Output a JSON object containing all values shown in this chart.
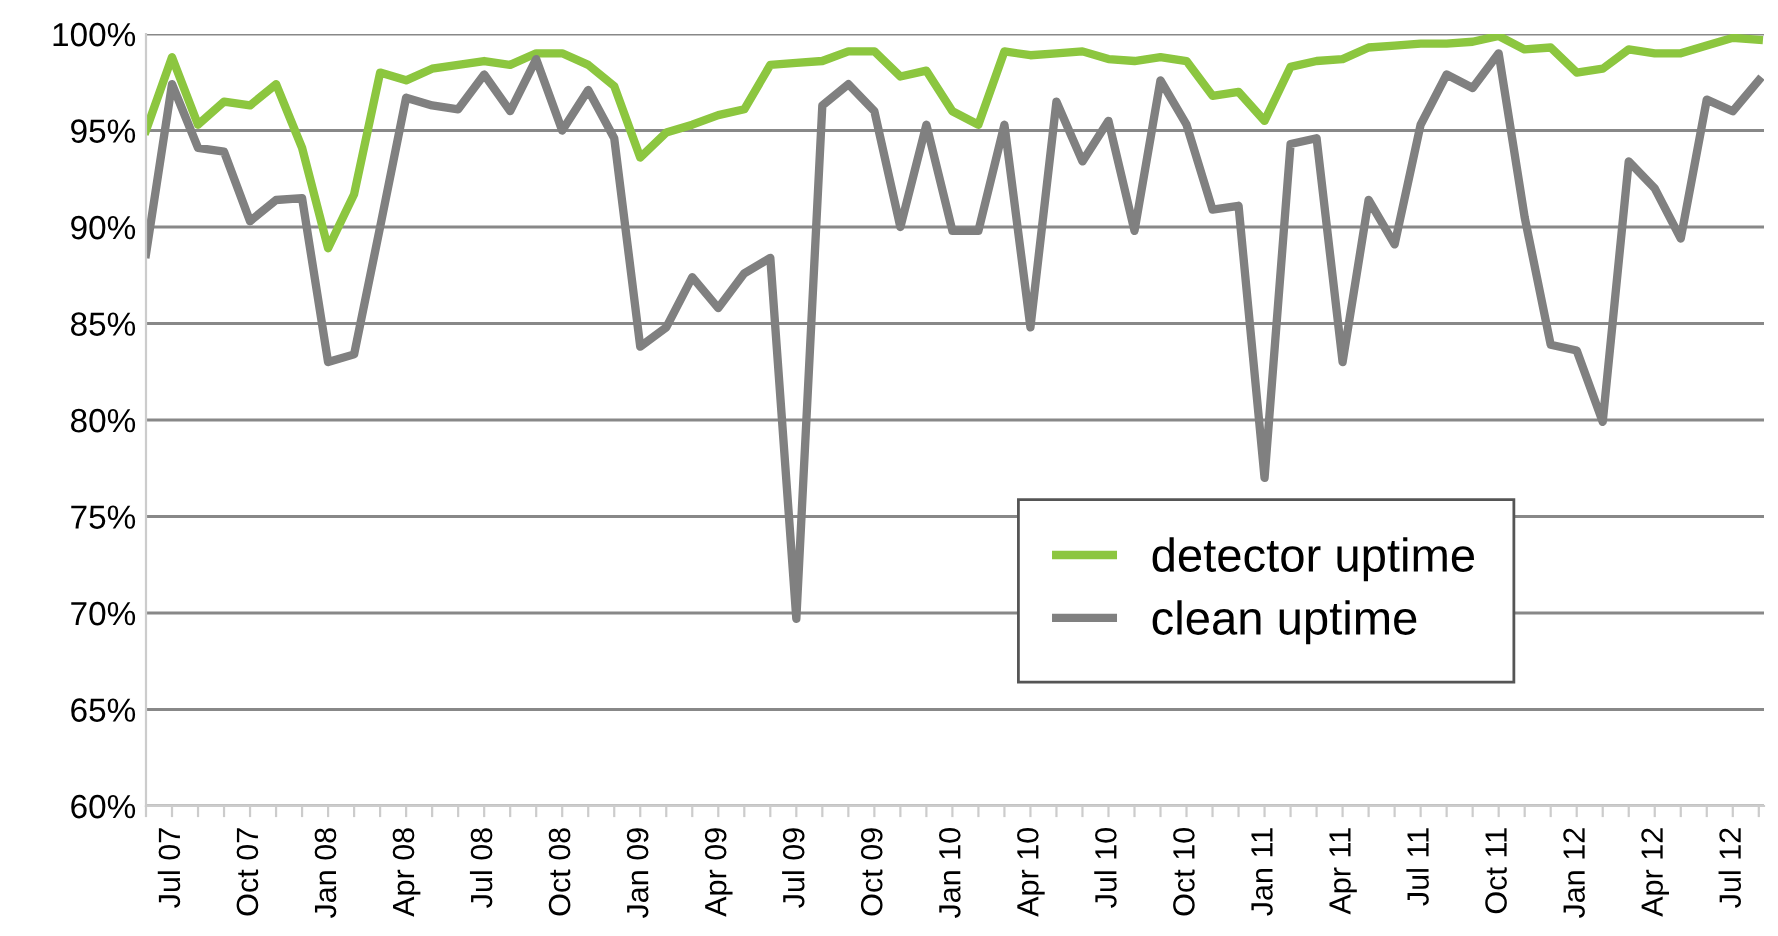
{
  "chart_data": {
    "type": "line",
    "categories": [
      null,
      "Jul 07",
      null,
      null,
      "Oct 07",
      null,
      null,
      "Jan 08",
      null,
      null,
      "Apr 08",
      null,
      null,
      "Jul 08",
      null,
      null,
      "Oct 08",
      null,
      null,
      "Jan 09",
      null,
      null,
      "Apr 09",
      null,
      null,
      "Jul 09",
      null,
      null,
      "Oct 09",
      null,
      null,
      "Jan 10",
      null,
      null,
      "Apr 10",
      null,
      null,
      "Jul 10",
      null,
      null,
      "Oct 10",
      null,
      null,
      "Jan 11",
      null,
      null,
      "Apr 11",
      null,
      null,
      "Jul 11",
      null,
      null,
      "Oct 11",
      null,
      null,
      "Jan 12",
      null,
      null,
      "Apr 12",
      null,
      null,
      "Jul 12",
      null
    ],
    "series": [
      {
        "name": "detector uptime",
        "color": "#8cc63f",
        "values": [
          95.0,
          98.8,
          95.3,
          96.5,
          96.3,
          97.4,
          94.1,
          88.9,
          91.7,
          98.0,
          97.6,
          98.2,
          98.4,
          98.6,
          98.4,
          99.0,
          99.0,
          98.4,
          97.3,
          93.6,
          94.9,
          95.3,
          95.8,
          96.1,
          98.4,
          98.5,
          98.6,
          99.1,
          99.1,
          97.8,
          98.1,
          96.0,
          95.3,
          99.1,
          98.9,
          99.0,
          99.1,
          98.7,
          98.6,
          98.8,
          98.6,
          96.8,
          97.0,
          95.5,
          98.3,
          98.6,
          98.7,
          99.3,
          99.4,
          99.5,
          99.5,
          99.6,
          99.9,
          99.2,
          99.3,
          98.0,
          98.2,
          99.2,
          99.0,
          99.0,
          99.4,
          99.8,
          99.7
        ]
      },
      {
        "name": "clean uptime",
        "color": "#808080",
        "values": [
          88.6,
          97.4,
          94.1,
          93.9,
          90.3,
          91.4,
          91.5,
          83.0,
          83.4,
          90.0,
          96.7,
          96.3,
          96.1,
          97.9,
          96.0,
          98.7,
          95.0,
          97.1,
          94.6,
          83.8,
          84.8,
          87.4,
          85.8,
          87.6,
          88.4,
          69.7,
          96.3,
          97.4,
          96.0,
          90.0,
          95.3,
          89.8,
          89.8,
          95.3,
          84.8,
          96.5,
          93.4,
          95.5,
          89.8,
          97.6,
          95.3,
          90.9,
          91.1,
          77.0,
          94.3,
          94.6,
          83.0,
          91.4,
          89.1,
          95.3,
          97.9,
          97.2,
          99.0,
          90.5,
          83.9,
          83.6,
          79.9,
          93.4,
          92.0,
          89.4,
          96.6,
          96.0,
          97.6
        ]
      }
    ],
    "ylim": [
      60,
      100
    ],
    "yticks": [
      {
        "value": 60,
        "label": "60%"
      },
      {
        "value": 65,
        "label": "65%"
      },
      {
        "value": 70,
        "label": "70%"
      },
      {
        "value": 75,
        "label": "75%"
      },
      {
        "value": 80,
        "label": "80%"
      },
      {
        "value": 85,
        "label": "85%"
      },
      {
        "value": 90,
        "label": "90%"
      },
      {
        "value": 95,
        "label": "95%"
      },
      {
        "value": 100,
        "label": "100%"
      }
    ],
    "grid": "y",
    "legend": "bottom right",
    "marker": "none",
    "line_style": "solid"
  }
}
